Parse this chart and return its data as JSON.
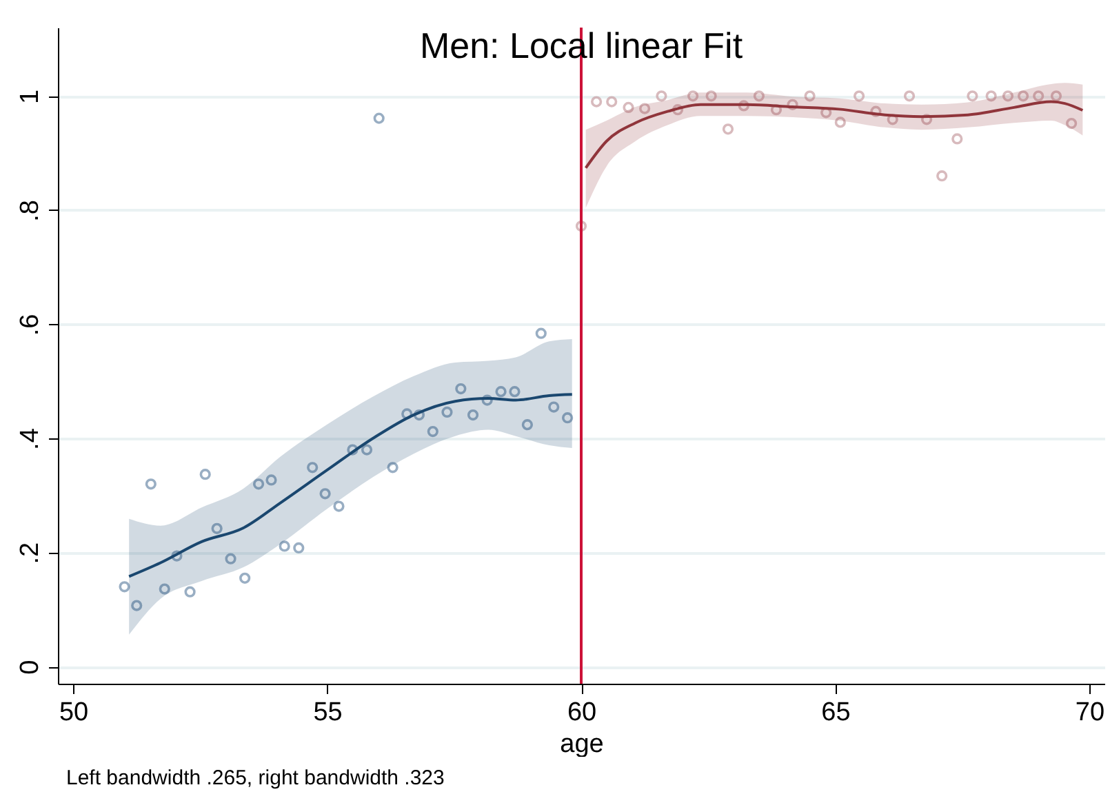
{
  "chart_data": {
    "type": "scatter",
    "title": "Men: Local linear Fit",
    "xlabel": "age",
    "annotations": [
      "Left bandwidth .265, right bandwidth .323"
    ],
    "xlim": [
      49.7,
      70.3
    ],
    "xticks": [
      50,
      55,
      60,
      65,
      70
    ],
    "ylim": [
      -0.03,
      1.12
    ],
    "yticks": [
      0,
      {
        "value": 0.2,
        "label": ".2"
      },
      {
        "value": 0.4,
        "label": ".4"
      },
      {
        "value": 0.6,
        "label": ".6"
      },
      {
        "value": 0.8,
        "label": ".8"
      },
      1
    ],
    "grid": "y",
    "ref_lines": [
      {
        "axis": "x",
        "value": 60,
        "color": "#cc1238"
      }
    ],
    "series": [
      {
        "marker": "circle",
        "color": "#6e8cab",
        "x": [
          51.01,
          51.25,
          51.53,
          51.8,
          52.04,
          52.3,
          52.6,
          52.83,
          53.1,
          53.38,
          53.65,
          53.9,
          54.16,
          54.44,
          54.71,
          54.96,
          55.23,
          55.5,
          55.78,
          56.02,
          56.29,
          56.57,
          56.81,
          57.08,
          57.36,
          57.63,
          57.87,
          58.15,
          58.42,
          58.69,
          58.94,
          59.21,
          59.46,
          59.73
        ],
        "values": [
          0.14,
          0.107,
          0.32,
          0.136,
          0.194,
          0.131,
          0.337,
          0.242,
          0.189,
          0.155,
          0.32,
          0.327,
          0.211,
          0.208,
          0.349,
          0.303,
          0.281,
          0.38,
          0.38,
          0.961,
          0.349,
          0.443,
          0.441,
          0.412,
          0.446,
          0.487,
          0.441,
          0.467,
          0.482,
          0.482,
          0.424,
          0.584,
          0.455,
          0.436
        ]
      },
      {
        "type": "line",
        "color": "#1a476f",
        "x": [
          51.1,
          51.72,
          52.53,
          53.35,
          54.08,
          54.99,
          55.9,
          56.7,
          57.52,
          58.17,
          58.71,
          59.37,
          59.82
        ],
        "values": [
          0.158,
          0.182,
          0.219,
          0.243,
          0.287,
          0.344,
          0.4,
          0.441,
          0.465,
          0.47,
          0.467,
          0.475,
          0.477
        ],
        "lower": [
          0.056,
          0.119,
          0.15,
          0.174,
          0.215,
          0.276,
          0.332,
          0.373,
          0.404,
          0.415,
          0.404,
          0.388,
          0.383
        ],
        "upper": [
          0.259,
          0.247,
          0.279,
          0.312,
          0.368,
          0.424,
          0.473,
          0.509,
          0.533,
          0.536,
          0.542,
          0.57,
          0.574
        ]
      },
      {
        "marker": "circle",
        "color": "#c89ea2",
        "x": [
          60.0,
          60.3,
          60.6,
          60.93,
          61.25,
          61.58,
          61.9,
          62.2,
          62.56,
          62.89,
          63.2,
          63.5,
          63.84,
          64.16,
          64.5,
          64.82,
          65.1,
          65.47,
          65.8,
          66.13,
          66.46,
          66.8,
          67.1,
          67.4,
          67.7,
          68.07,
          68.4,
          68.7,
          69.0,
          69.35,
          69.65
        ],
        "values": [
          0.772,
          0.99,
          0.99,
          0.98,
          0.978,
          1.0,
          0.976,
          1.0,
          1.0,
          0.942,
          0.983,
          1.0,
          0.976,
          0.985,
          1.0,
          0.971,
          0.954,
          1.0,
          0.973,
          0.959,
          1.0,
          0.959,
          0.86,
          0.925,
          1.0,
          1.0,
          1.0,
          1.0,
          1.0,
          1.0,
          0.952
        ]
      },
      {
        "type": "line",
        "color": "#90353b",
        "x": [
          60.09,
          60.5,
          61.07,
          61.7,
          62.35,
          63.26,
          64.16,
          65.07,
          65.98,
          66.7,
          67.61,
          68.52,
          69.25,
          69.52,
          69.87
        ],
        "values": [
          0.874,
          0.921,
          0.953,
          0.973,
          0.985,
          0.985,
          0.981,
          0.977,
          0.967,
          0.964,
          0.967,
          0.98,
          0.99,
          0.987,
          0.975
        ],
        "lower": [
          0.804,
          0.877,
          0.921,
          0.949,
          0.965,
          0.965,
          0.963,
          0.957,
          0.945,
          0.941,
          0.945,
          0.953,
          0.957,
          0.949,
          0.931
        ],
        "upper": [
          0.941,
          0.957,
          0.981,
          0.993,
          1.006,
          1.006,
          0.999,
          0.996,
          0.987,
          0.985,
          0.989,
          1.006,
          1.021,
          1.023,
          1.02
        ]
      }
    ]
  }
}
